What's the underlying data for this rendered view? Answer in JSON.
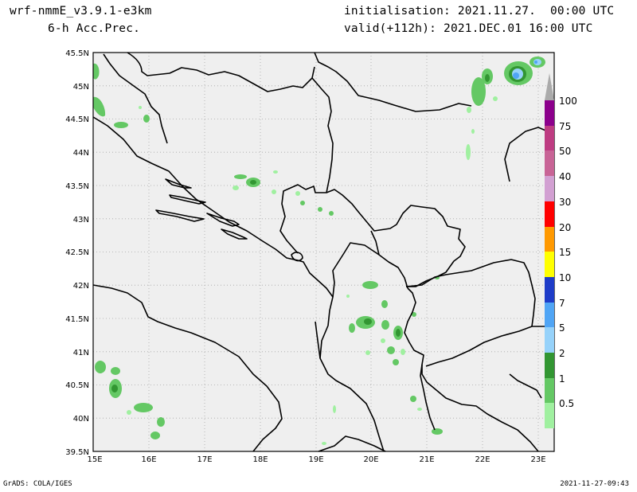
{
  "header": {
    "model": "wrf-nmmE_v3.9.1-e3km",
    "field": "6-h Acc.Prec.",
    "init": "initialisation: 2021.11.27.  00:00 UTC",
    "valid": "valid(+112h): 2021.DEC.01 16:00 UTC"
  },
  "footer": {
    "left": "GrADS: COLA/IGES",
    "right": "2021-11-27-09:43"
  },
  "map": {
    "lat_labels": [
      "45.5N",
      "45N",
      "44.5N",
      "44N",
      "43.5N",
      "43N",
      "42.5N",
      "42N",
      "41.5N",
      "41N",
      "40.5N",
      "40N",
      "39.5N"
    ],
    "lon_labels": [
      "15E",
      "16E",
      "17E",
      "18E",
      "19E",
      "20E",
      "21E",
      "22E",
      "23E"
    ],
    "background": "#efefef",
    "colors": {
      "c05": "#a0f0a0",
      "c1": "#64c864",
      "c2": "#329632",
      "c5": "#96d2fa",
      "c7": "#50a5f5",
      "c10": "#1e3cc8",
      "c15": "#ffff00",
      "c20": "#ff9900",
      "c30": "#ff0000",
      "c40": "#d2a0d2",
      "c50": "#c86496",
      "c75": "#be3c82",
      "c100": "#8c008c",
      "top": "#aaaaaa"
    }
  },
  "colorbar": {
    "labels": [
      "100",
      "75",
      "50",
      "40",
      "30",
      "20",
      "15",
      "10",
      "7",
      "5",
      "2",
      "1",
      "0.5"
    ]
  }
}
